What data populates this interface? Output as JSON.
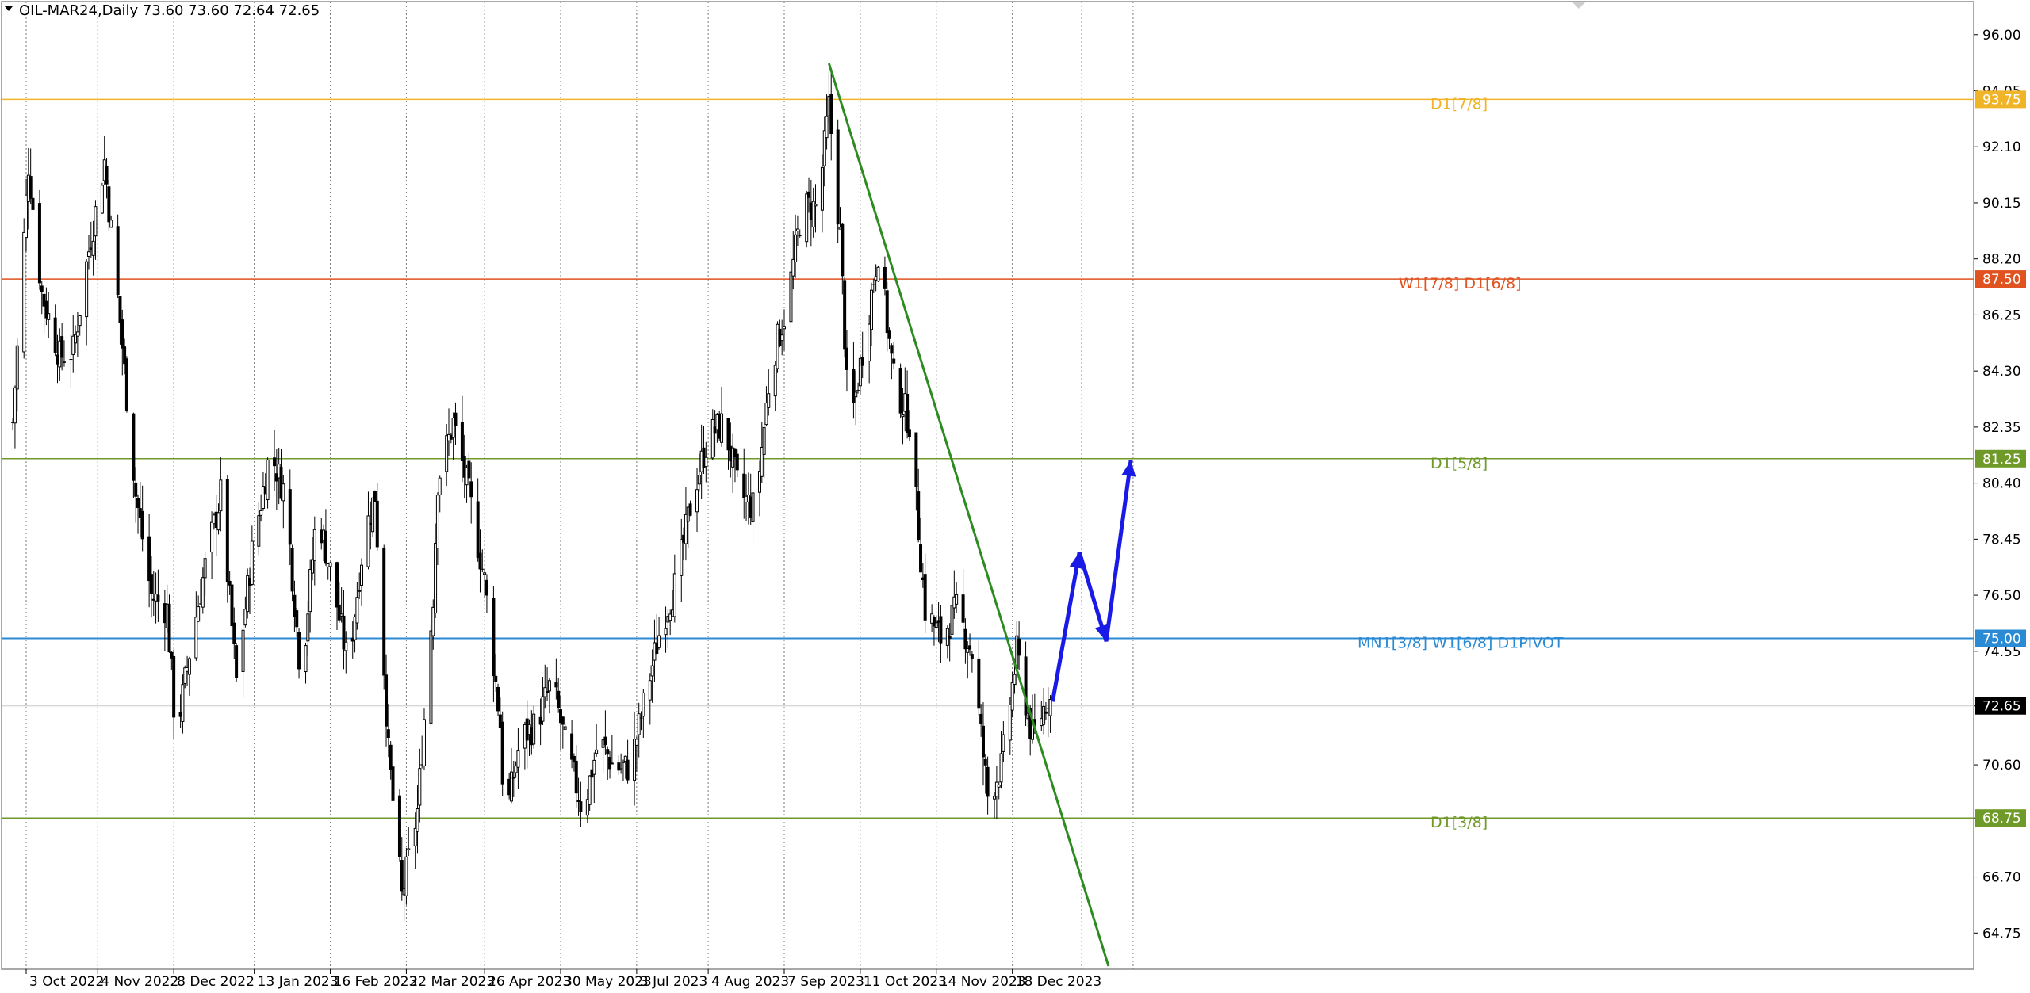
{
  "header": {
    "symbol_line": "OIL-MAR24,Daily  73.60 73.60 72.64 72.65"
  },
  "colors": {
    "background": "#ffffff",
    "candle": "#000000",
    "level_781": "#f0b429",
    "level_6875": "#e0521f",
    "level_5_8": "#6f9a2a",
    "pivot": "#2a8ad4",
    "trendline": "#2e8b22",
    "forecast_arrow": "#1a1ae6",
    "grid": "#7a7a7a"
  },
  "chart_data": {
    "type": "candlestick",
    "symbol": "OIL-MAR24",
    "timeframe": "Daily",
    "last_ohlc": {
      "open": 73.6,
      "high": 73.6,
      "low": 72.64,
      "close": 72.65
    },
    "ylim": [
      63.6,
      96.6
    ],
    "y_ticks": [
      "96.00",
      "94.05",
      "92.10",
      "90.15",
      "88.20",
      "86.25",
      "84.30",
      "82.35",
      "80.40",
      "78.45",
      "76.50",
      "74.55",
      "72.65",
      "70.60",
      "68.75",
      "66.70",
      "64.75"
    ],
    "x_ticks": [
      "3 Oct 2022",
      "4 Nov 2022",
      "8 Dec 2022",
      "13 Jan 2023",
      "16 Feb 2023",
      "22 Mar 2023",
      "26 Apr 2023",
      "30 May 2023",
      "3 Jul 2023",
      "4 Aug 2023",
      "7 Sep 2023",
      "11 Oct 2023",
      "14 Nov 2023",
      "18 Dec 2023"
    ],
    "grid": "vertical-dotted",
    "levels": [
      {
        "price": 93.75,
        "label": "D1[7/8]",
        "tag": "93.75",
        "color": "#f0b429"
      },
      {
        "price": 87.5,
        "label": "W1[7/8] D1[6/8]",
        "tag": "87.50",
        "color": "#e0521f"
      },
      {
        "price": 81.25,
        "label": "D1[5/8]",
        "tag": "81.25",
        "color": "#6f9a2a"
      },
      {
        "price": 75.0,
        "label": "MN1[3/8] W1[6/8] D1PIVOT",
        "tag": "75.00",
        "color": "#2a8ad4"
      },
      {
        "price": 68.75,
        "label": "D1[3/8]",
        "tag": "68.75",
        "color": "#6f9a2a"
      }
    ],
    "current_price": {
      "price": 72.65,
      "tag": "72.65"
    },
    "trendline": {
      "from": {
        "date": "2023-09-27",
        "price": 95.0
      },
      "to": {
        "date": "2024-01-30",
        "price": 63.6
      }
    },
    "forecast_path": [
      {
        "date": "2024-01-05",
        "price": 72.8
      },
      {
        "date": "2024-01-17",
        "price": 78.0
      },
      {
        "date": "2024-01-29",
        "price": 74.9
      },
      {
        "date": "2024-02-09",
        "price": 81.2
      }
    ],
    "series": [
      {
        "kind": "close",
        "anchors": [
          {
            "date": "2022-09-27",
            "price": 82.5
          },
          {
            "date": "2022-10-04",
            "price": 91.5
          },
          {
            "date": "2022-10-10",
            "price": 87.0
          },
          {
            "date": "2022-10-18",
            "price": 84.8
          },
          {
            "date": "2022-10-24",
            "price": 85.0
          },
          {
            "date": "2022-10-31",
            "price": 88.5
          },
          {
            "date": "2022-11-07",
            "price": 91.6
          },
          {
            "date": "2022-11-14",
            "price": 86.0
          },
          {
            "date": "2022-11-21",
            "price": 80.0
          },
          {
            "date": "2022-11-28",
            "price": 76.5
          },
          {
            "date": "2022-12-05",
            "price": 76.0
          },
          {
            "date": "2022-12-09",
            "price": 71.5
          },
          {
            "date": "2022-12-15",
            "price": 74.5
          },
          {
            "date": "2022-12-22",
            "price": 77.5
          },
          {
            "date": "2022-12-29",
            "price": 80.0
          },
          {
            "date": "2023-01-05",
            "price": 73.5
          },
          {
            "date": "2023-01-12",
            "price": 78.0
          },
          {
            "date": "2023-01-20",
            "price": 81.5
          },
          {
            "date": "2023-01-27",
            "price": 80.0
          },
          {
            "date": "2023-02-03",
            "price": 73.5
          },
          {
            "date": "2023-02-10",
            "price": 79.5
          },
          {
            "date": "2023-02-17",
            "price": 77.0
          },
          {
            "date": "2023-02-24",
            "price": 74.0
          },
          {
            "date": "2023-03-03",
            "price": 78.5
          },
          {
            "date": "2023-03-08",
            "price": 80.0
          },
          {
            "date": "2023-03-14",
            "price": 71.0
          },
          {
            "date": "2023-03-20",
            "price": 66.0
          },
          {
            "date": "2023-03-27",
            "price": 69.0
          },
          {
            "date": "2023-04-03",
            "price": 76.5
          },
          {
            "date": "2023-04-05",
            "price": 80.5
          },
          {
            "date": "2023-04-12",
            "price": 82.5
          },
          {
            "date": "2023-04-19",
            "price": 80.0
          },
          {
            "date": "2023-04-26",
            "price": 77.0
          },
          {
            "date": "2023-05-03",
            "price": 72.0
          },
          {
            "date": "2023-05-05",
            "price": 68.5
          },
          {
            "date": "2023-05-12",
            "price": 71.5
          },
          {
            "date": "2023-05-19",
            "price": 72.0
          },
          {
            "date": "2023-05-26",
            "price": 73.5
          },
          {
            "date": "2023-06-02",
            "price": 71.0
          },
          {
            "date": "2023-06-09",
            "price": 69.0
          },
          {
            "date": "2023-06-16",
            "price": 71.5
          },
          {
            "date": "2023-06-23",
            "price": 70.5
          },
          {
            "date": "2023-06-30",
            "price": 70.5
          },
          {
            "date": "2023-07-07",
            "price": 73.0
          },
          {
            "date": "2023-07-14",
            "price": 75.5
          },
          {
            "date": "2023-07-21",
            "price": 77.0
          },
          {
            "date": "2023-07-28",
            "price": 80.0
          },
          {
            "date": "2023-08-04",
            "price": 82.0
          },
          {
            "date": "2023-08-11",
            "price": 82.5
          },
          {
            "date": "2023-08-18",
            "price": 80.0
          },
          {
            "date": "2023-08-25",
            "price": 79.5
          },
          {
            "date": "2023-09-01",
            "price": 84.5
          },
          {
            "date": "2023-09-08",
            "price": 86.5
          },
          {
            "date": "2023-09-15",
            "price": 90.0
          },
          {
            "date": "2023-09-22",
            "price": 90.0
          },
          {
            "date": "2023-09-27",
            "price": 93.5
          },
          {
            "date": "2023-10-02",
            "price": 89.0
          },
          {
            "date": "2023-10-06",
            "price": 82.0
          },
          {
            "date": "2023-10-13",
            "price": 85.5
          },
          {
            "date": "2023-10-19",
            "price": 88.5
          },
          {
            "date": "2023-10-26",
            "price": 84.0
          },
          {
            "date": "2023-11-02",
            "price": 82.5
          },
          {
            "date": "2023-11-09",
            "price": 76.0
          },
          {
            "date": "2023-11-16",
            "price": 75.0
          },
          {
            "date": "2023-11-23",
            "price": 76.0
          },
          {
            "date": "2023-11-30",
            "price": 74.5
          },
          {
            "date": "2023-12-07",
            "price": 69.5
          },
          {
            "date": "2023-12-13",
            "price": 70.5
          },
          {
            "date": "2023-12-20",
            "price": 74.5
          },
          {
            "date": "2023-12-27",
            "price": 71.5
          },
          {
            "date": "2024-01-03",
            "price": 73.0
          },
          {
            "date": "2024-01-05",
            "price": 72.65
          }
        ]
      }
    ]
  }
}
